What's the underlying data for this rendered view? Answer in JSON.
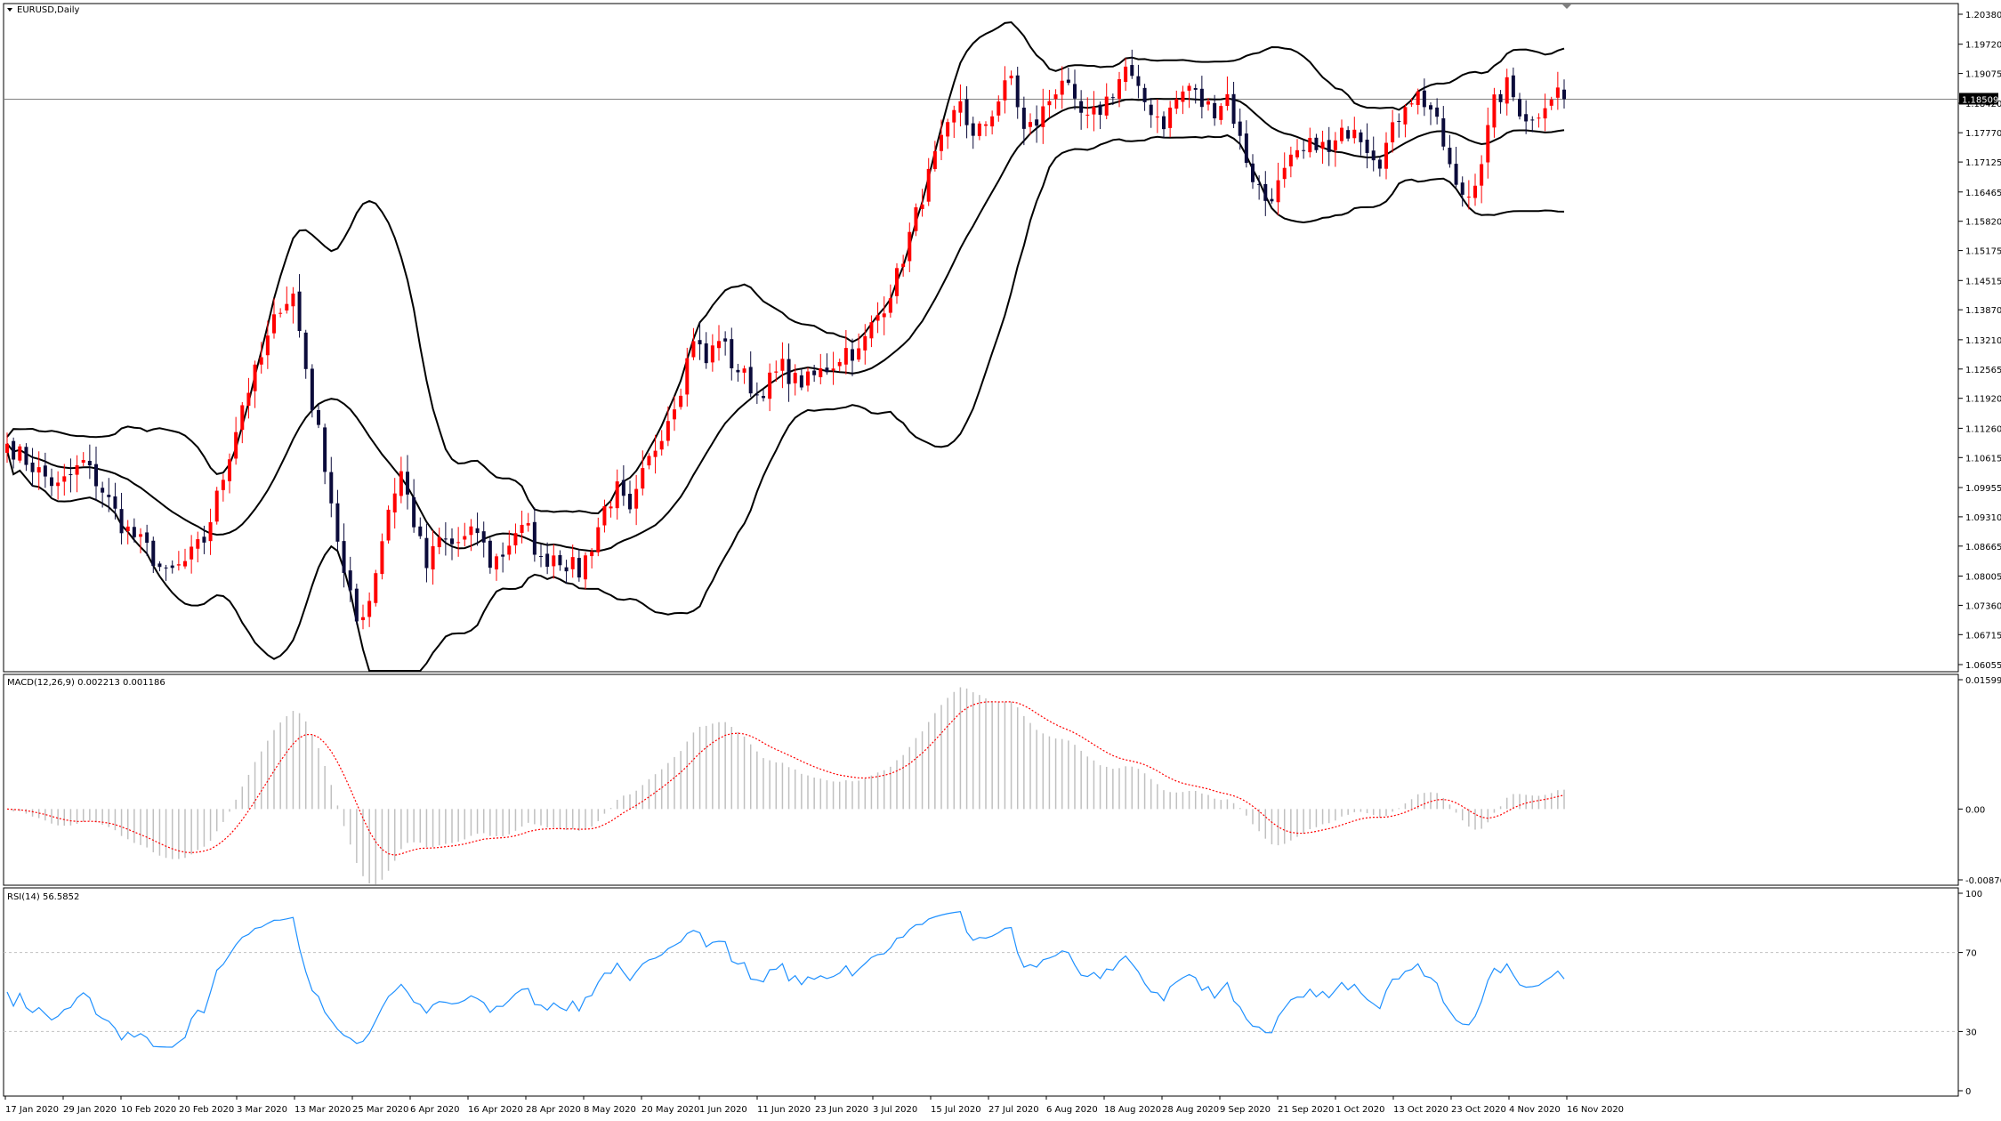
{
  "window": {
    "symbol_label": "EURUSD,Daily",
    "current_price": "1.18509",
    "current_price_value": 1.18509
  },
  "colors": {
    "bull": "#ff0000",
    "bear": "#0b0b3b",
    "band": "#000000",
    "macd_hist": "#c0c0c0",
    "macd_signal": "#ff0000",
    "rsi": "#1e90ff",
    "grid": "#c0c0c0",
    "axis": "#000000"
  },
  "price_panel": {
    "min": 1.06055,
    "max": 1.2038,
    "ticks": [
      "1.20380",
      "1.19720",
      "1.19075",
      "1.18420",
      "1.17770",
      "1.17125",
      "1.16465",
      "1.15820",
      "1.15175",
      "1.14515",
      "1.13870",
      "1.13210",
      "1.12565",
      "1.11920",
      "1.11260",
      "1.10615",
      "1.09955",
      "1.09310",
      "1.08665",
      "1.08005",
      "1.07360",
      "1.06715",
      "1.06055"
    ]
  },
  "macd_panel": {
    "label": "MACD(12,26,9) 0.002213 0.001186",
    "min": -0.008763,
    "max": 0.01599,
    "ticks": [
      "0.01599",
      "0.00",
      "-0.008763"
    ]
  },
  "rsi_panel": {
    "label": "RSI(14) 56.5852",
    "min": 0,
    "max": 100,
    "ticks": [
      "100",
      "70",
      "30",
      "0"
    ],
    "levels": [
      70,
      30
    ]
  },
  "time_axis": {
    "labels": [
      "17 Jan 2020",
      "29 Jan 2020",
      "10 Feb 2020",
      "20 Feb 2020",
      "3 Mar 2020",
      "13 Mar 2020",
      "25 Mar 2020",
      "6 Apr 2020",
      "16 Apr 2020",
      "28 Apr 2020",
      "8 May 2020",
      "20 May 2020",
      "1 Jun 2020",
      "11 Jun 2020",
      "23 Jun 2020",
      "3 Jul 2020",
      "15 Jul 2020",
      "27 Jul 2020",
      "6 Aug 2020",
      "18 Aug 2020",
      "28 Aug 2020",
      "9 Sep 2020",
      "21 Sep 2020",
      "1 Oct 2020",
      "13 Oct 2020",
      "23 Oct 2020",
      "4 Nov 2020",
      "16 Nov 2020"
    ]
  },
  "chart_data": {
    "type": "candlestick",
    "title": "EURUSD,Daily",
    "close_anchors": [
      [
        0,
        1.1092
      ],
      [
        5,
        1.103
      ],
      [
        8,
        1.0995
      ],
      [
        12,
        1.105
      ],
      [
        15,
        1.099
      ],
      [
        18,
        1.0915
      ],
      [
        22,
        1.086
      ],
      [
        25,
        1.08
      ],
      [
        28,
        1.083
      ],
      [
        31,
        1.088
      ],
      [
        34,
        1.102
      ],
      [
        37,
        1.118
      ],
      [
        40,
        1.128
      ],
      [
        43,
        1.14
      ],
      [
        45,
        1.142
      ],
      [
        48,
        1.118
      ],
      [
        50,
        1.105
      ],
      [
        53,
        1.08
      ],
      [
        55,
        1.07
      ],
      [
        57,
        1.075
      ],
      [
        60,
        1.095
      ],
      [
        62,
        1.103
      ],
      [
        64,
        1.092
      ],
      [
        66,
        1.082
      ],
      [
        68,
        1.088
      ],
      [
        70,
        1.087
      ],
      [
        72,
        1.088
      ],
      [
        74,
        1.09
      ],
      [
        76,
        1.083
      ],
      [
        78,
        1.085
      ],
      [
        80,
        1.09
      ],
      [
        82,
        1.09
      ],
      [
        84,
        1.083
      ],
      [
        86,
        1.085
      ],
      [
        88,
        1.083
      ],
      [
        90,
        1.081
      ],
      [
        92,
        1.087
      ],
      [
        94,
        1.095
      ],
      [
        96,
        1.099
      ],
      [
        98,
        1.093
      ],
      [
        100,
        1.102
      ],
      [
        103,
        1.112
      ],
      [
        106,
        1.122
      ],
      [
        108,
        1.133
      ],
      [
        110,
        1.127
      ],
      [
        112,
        1.133
      ],
      [
        114,
        1.127
      ],
      [
        116,
        1.124
      ],
      [
        118,
        1.12
      ],
      [
        120,
        1.123
      ],
      [
        122,
        1.126
      ],
      [
        124,
        1.123
      ],
      [
        126,
        1.123
      ],
      [
        128,
        1.125
      ],
      [
        130,
        1.127
      ],
      [
        132,
        1.13
      ],
      [
        134,
        1.129
      ],
      [
        136,
        1.135
      ],
      [
        138,
        1.14
      ],
      [
        140,
        1.146
      ],
      [
        142,
        1.155
      ],
      [
        144,
        1.164
      ],
      [
        146,
        1.172
      ],
      [
        148,
        1.178
      ],
      [
        150,
        1.185
      ],
      [
        152,
        1.176
      ],
      [
        154,
        1.18
      ],
      [
        156,
        1.185
      ],
      [
        158,
        1.19
      ],
      [
        160,
        1.178
      ],
      [
        162,
        1.18
      ],
      [
        164,
        1.185
      ],
      [
        166,
        1.19
      ],
      [
        168,
        1.183
      ],
      [
        170,
        1.18
      ],
      [
        172,
        1.183
      ],
      [
        174,
        1.187
      ],
      [
        176,
        1.192
      ],
      [
        178,
        1.186
      ],
      [
        180,
        1.183
      ],
      [
        182,
        1.18
      ],
      [
        184,
        1.185
      ],
      [
        186,
        1.188
      ],
      [
        188,
        1.184
      ],
      [
        190,
        1.183
      ],
      [
        192,
        1.186
      ],
      [
        194,
        1.176
      ],
      [
        196,
        1.168
      ],
      [
        198,
        1.163
      ],
      [
        200,
        1.166
      ],
      [
        202,
        1.171
      ],
      [
        204,
        1.173
      ],
      [
        206,
        1.176
      ],
      [
        208,
        1.173
      ],
      [
        210,
        1.177
      ],
      [
        212,
        1.18
      ],
      [
        214,
        1.175
      ],
      [
        216,
        1.172
      ],
      [
        218,
        1.178
      ],
      [
        220,
        1.185
      ],
      [
        222,
        1.186
      ],
      [
        224,
        1.183
      ],
      [
        226,
        1.175
      ],
      [
        228,
        1.165
      ],
      [
        230,
        1.164
      ],
      [
        232,
        1.172
      ],
      [
        234,
        1.184
      ],
      [
        236,
        1.188
      ],
      [
        238,
        1.183
      ],
      [
        240,
        1.18
      ],
      [
        242,
        1.185
      ],
      [
        244,
        1.187
      ],
      [
        245,
        1.1851
      ]
    ],
    "n_bars": 246,
    "bollinger": {
      "period": 20,
      "deviations": 2
    },
    "macd": {
      "fast": 12,
      "slow": 26,
      "signal": 9,
      "last_main": 0.002213,
      "last_signal": 0.001186
    },
    "rsi": {
      "period": 14,
      "last": 56.5852
    },
    "ylim_price": [
      1.06055,
      1.2038
    ]
  }
}
